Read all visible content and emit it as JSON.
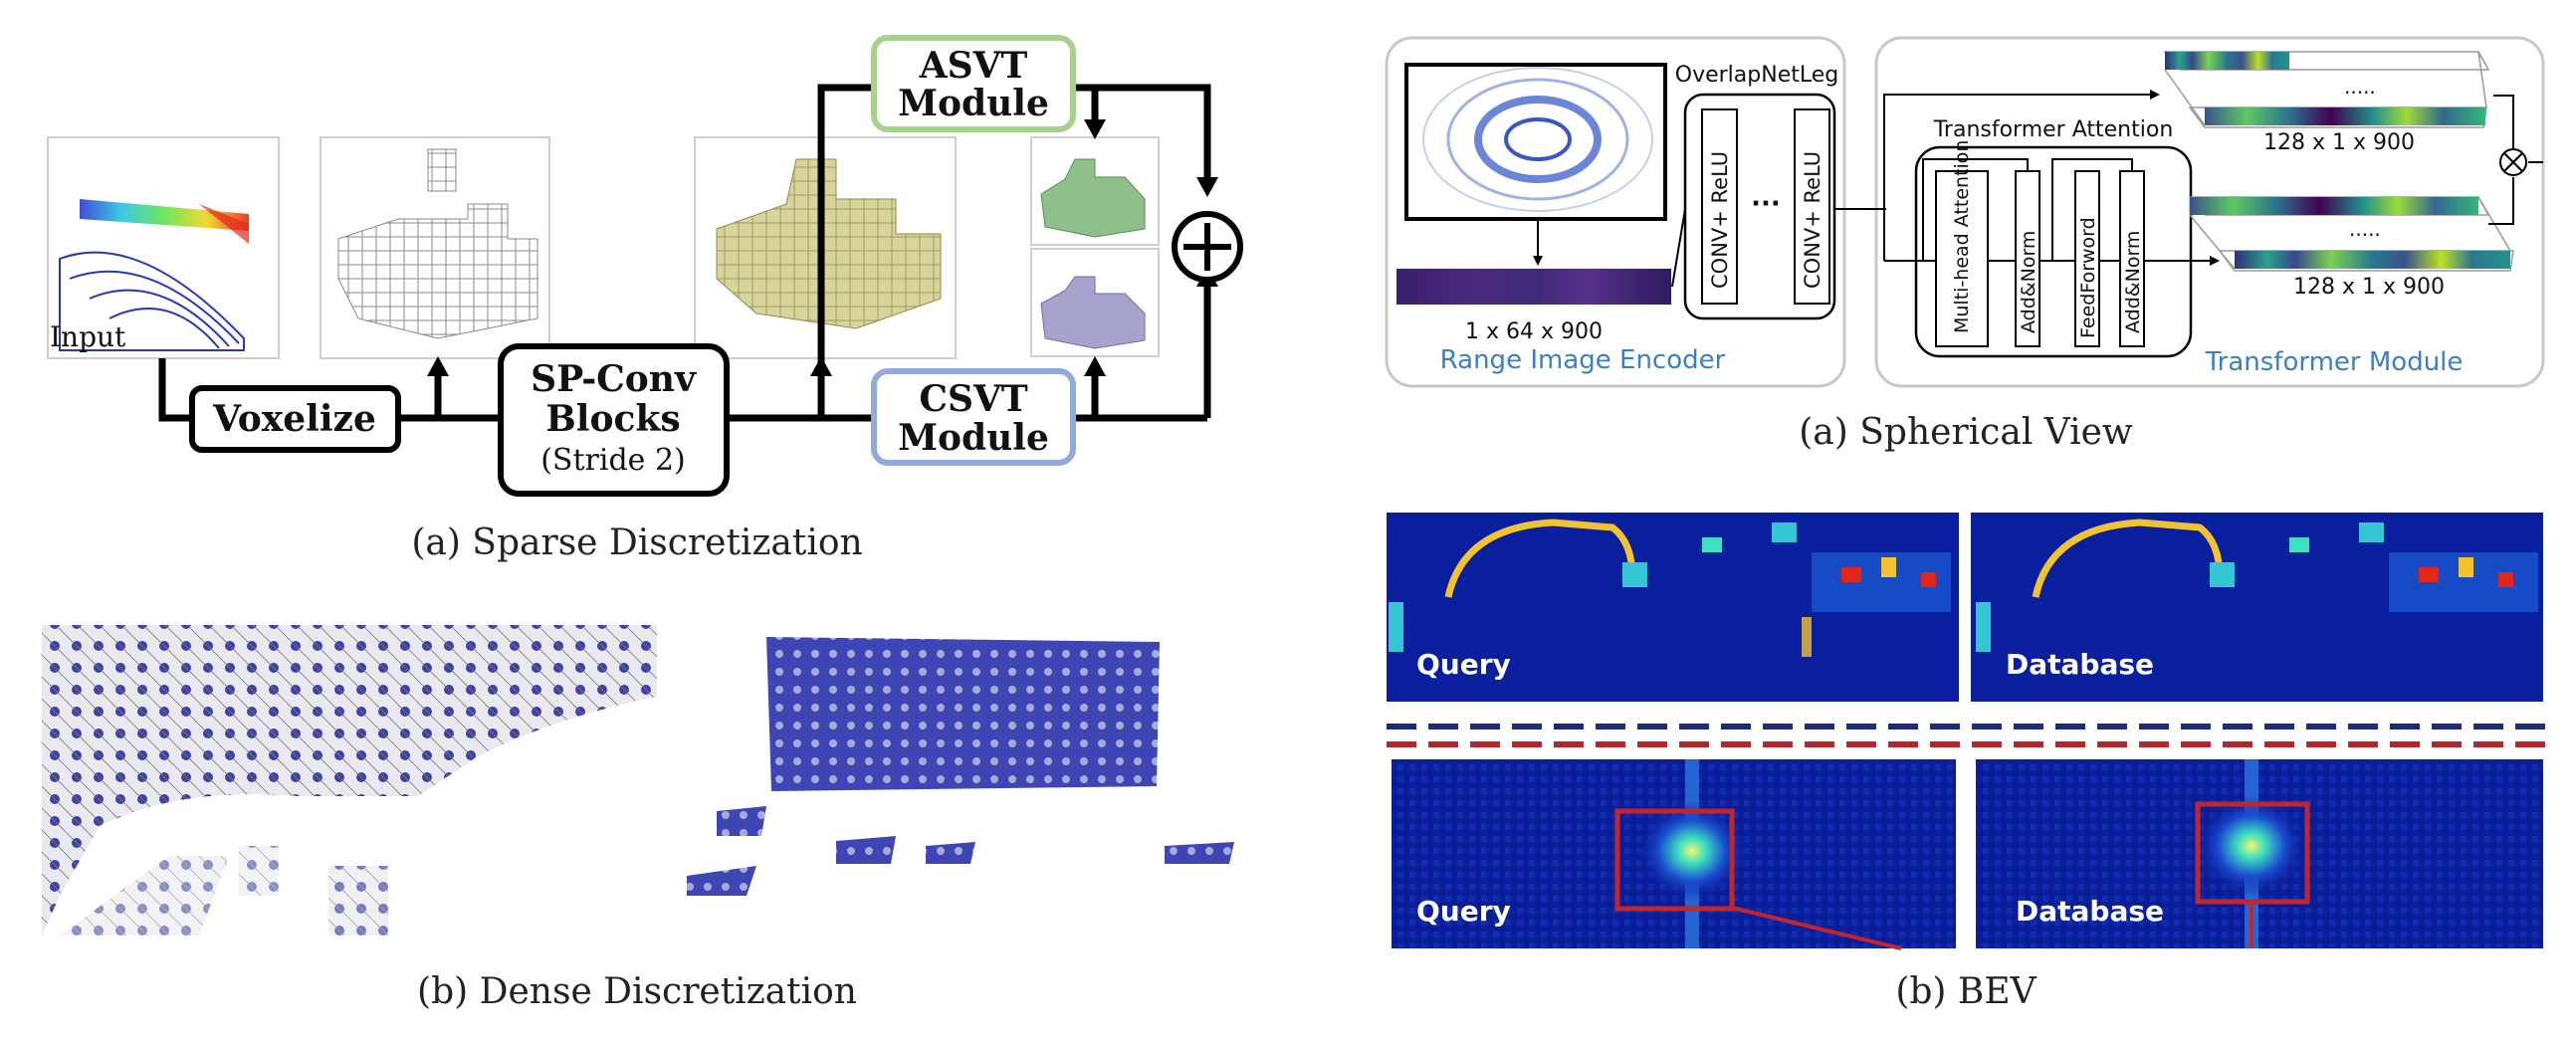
{
  "left": {
    "sparse": {
      "input_label": "Input",
      "voxelize": "Voxelize",
      "spconv_line1": "SP-Conv",
      "spconv_line2": "Blocks",
      "spconv_line3": "(Stride 2)",
      "asvt_line1": "ASVT",
      "asvt_line2": "Module",
      "csvt_line1": "CSVT",
      "csvt_line2": "Module",
      "caption": "(a)  Sparse Discretization",
      "colors": {
        "asvt_border": "#a9d18e",
        "csvt_border": "#8faadc",
        "voxel_yellow": "#d9d6a0",
        "voxel_green": "#8fbf8a",
        "voxel_purple": "#a7a3cf"
      }
    },
    "dense": {
      "caption": "(b)  Dense Discretization"
    }
  },
  "right": {
    "spherical": {
      "encoder_title": "OverlapNetLeg",
      "conv1": "CONV+ ReLU",
      "dots": "···",
      "conv2": "CONV+ ReLU",
      "range_dim": "1 x 64 x 900",
      "encoder_label": "Range Image Encoder",
      "transformer_attention": "Transformer Attention",
      "mha": "Multi-head Attention",
      "addnorm1": "Add&Norm",
      "feedforward": "FeedForword",
      "addnorm2": "Add&Norm",
      "dim_top": "128 x 1 x 900",
      "dim_bottom": "128 x 1 x 900",
      "transformer_label": "Transformer Module",
      "caption": "(a)  Spherical View",
      "colors": {
        "label_blue": "#3c7fc1",
        "panel_border": "#c8c8c8"
      }
    },
    "bev": {
      "query_top": "Query",
      "database_top": "Database",
      "query_bottom": "Query",
      "database_bottom": "Database",
      "caption": "(b)  BEV",
      "colors": {
        "heat_bg": "#0a1f9e",
        "dash_blue": "#1f2a7a",
        "dash_red": "#b3262b",
        "box_red": "#c0262c"
      }
    }
  }
}
